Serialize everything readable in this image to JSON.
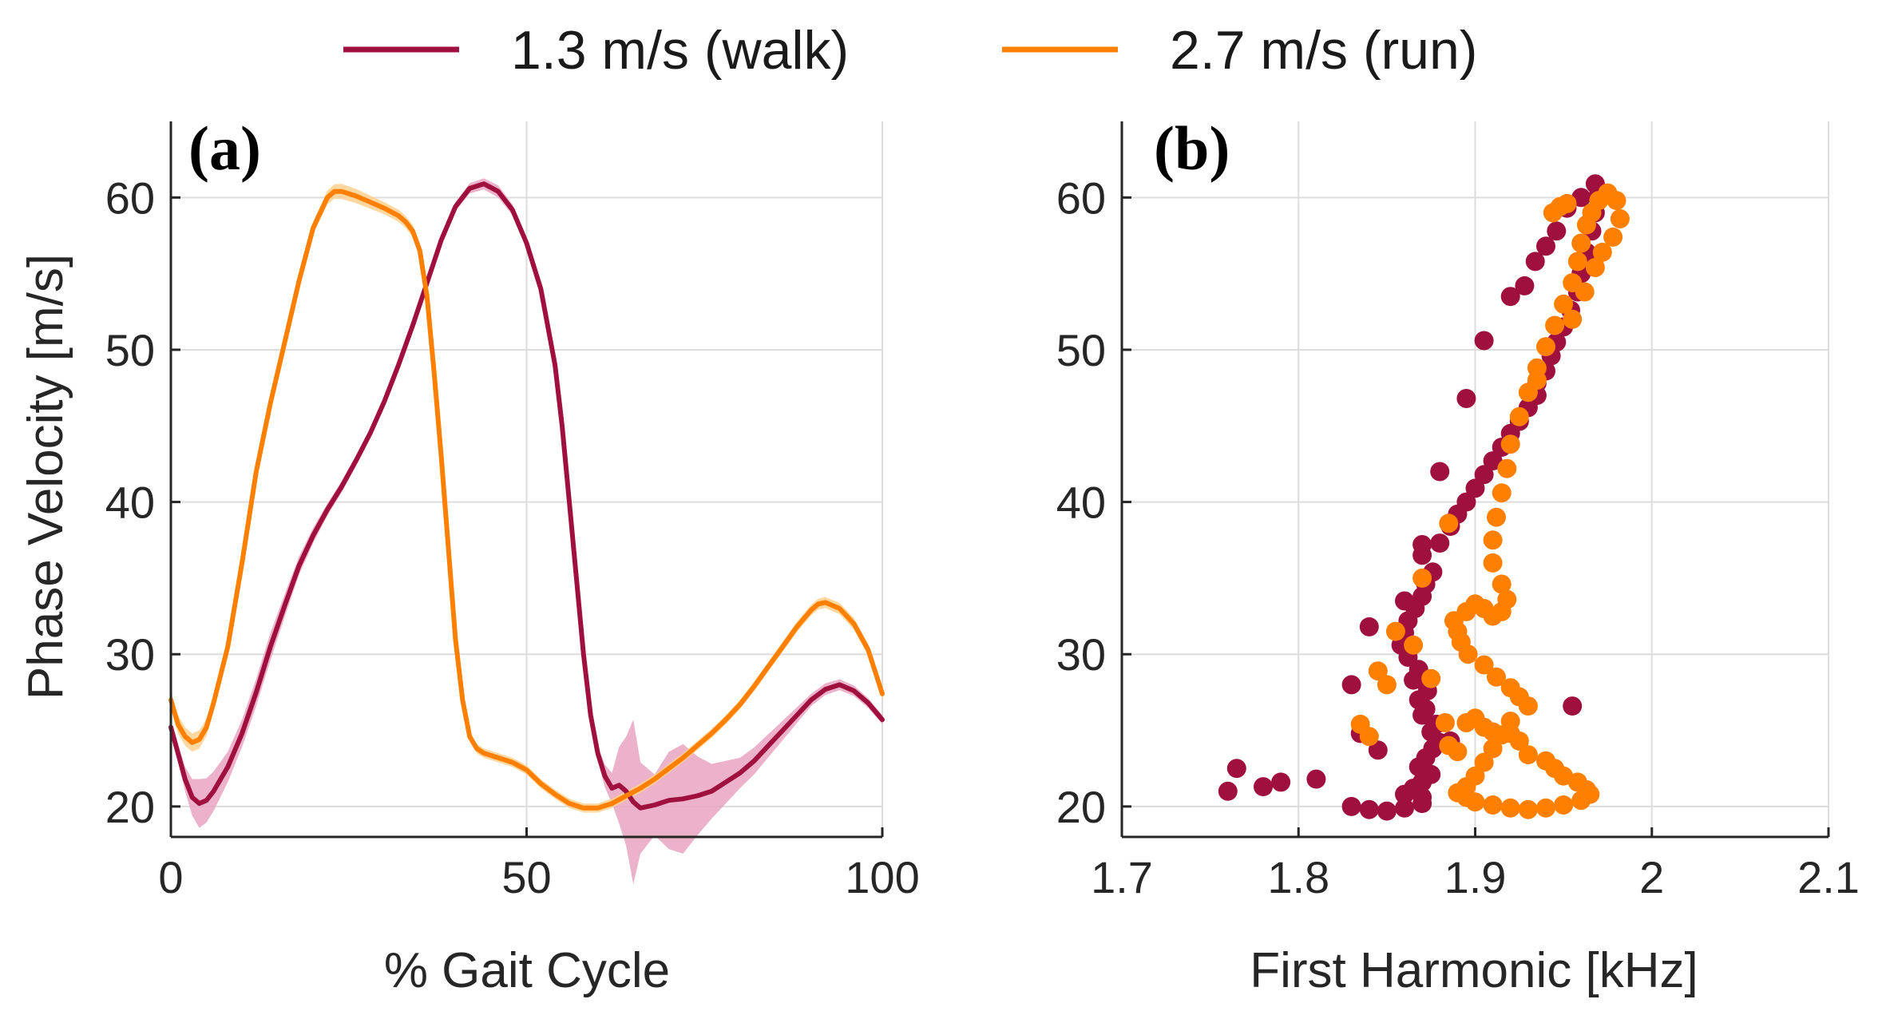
{
  "legend": {
    "walk_label": "1.3 m/s (walk)",
    "run_label": "2.7 m/s (run)"
  },
  "colors": {
    "walk": "#A0103F",
    "run": "#FF8000",
    "walk_band": "#E8A5C0",
    "run_band": "#FFD090",
    "grid": "#DDDDDD",
    "axis": "#262626"
  },
  "chart_data": [
    {
      "panel": "(a)",
      "type": "line",
      "xlabel": "% Gait Cycle",
      "ylabel": "Phase Velocity [m/s]",
      "xlim": [
        0,
        100
      ],
      "ylim": [
        18,
        65
      ],
      "xticks": [
        0,
        50,
        100
      ],
      "yticks": [
        20,
        30,
        40,
        50,
        60
      ],
      "grid": true,
      "series": [
        {
          "name": "1.3 m/s (walk)",
          "x": [
            0,
            1,
            2,
            3,
            4,
            5,
            6,
            8,
            10,
            12,
            14,
            16,
            18,
            20,
            22,
            24,
            26,
            28,
            30,
            32,
            34,
            36,
            38,
            40,
            42,
            44,
            46,
            48,
            50,
            52,
            54,
            55,
            56,
            57,
            58,
            59,
            60,
            61,
            62,
            63,
            64,
            65,
            66,
            68,
            70,
            72,
            74,
            76,
            78,
            80,
            82,
            84,
            86,
            88,
            90,
            92,
            94,
            96,
            98,
            100
          ],
          "y": [
            25.2,
            23.5,
            21.8,
            20.6,
            20.2,
            20.4,
            21.0,
            22.6,
            24.8,
            27.5,
            30.5,
            33.2,
            35.8,
            37.8,
            39.5,
            41.0,
            42.7,
            44.5,
            46.6,
            49.0,
            51.6,
            54.4,
            57.2,
            59.4,
            60.6,
            60.9,
            60.4,
            59.2,
            57.0,
            54.0,
            49.0,
            45.0,
            40.0,
            35.0,
            30.0,
            26.0,
            23.5,
            22.0,
            21.2,
            21.4,
            21.0,
            20.3,
            19.9,
            20.1,
            20.4,
            20.5,
            20.7,
            21.0,
            21.6,
            22.2,
            23.0,
            24.0,
            25.0,
            26.0,
            27.0,
            27.7,
            28.0,
            27.6,
            26.8,
            25.7
          ],
          "band_x": [
            0,
            2,
            4,
            6,
            8,
            10,
            14,
            18,
            22,
            30,
            40,
            46,
            50,
            56,
            60,
            62,
            63,
            64,
            65,
            66,
            67,
            68,
            69,
            70,
            71,
            72,
            74,
            76,
            80,
            90,
            100
          ],
          "band_hw": [
            0.4,
            0.8,
            1.6,
            1.3,
            1.0,
            0.9,
            0.9,
            0.6,
            0.4,
            0.3,
            0.3,
            0.4,
            0.3,
            0.4,
            0.5,
            1.0,
            2.5,
            3.6,
            5.4,
            3.0,
            2.2,
            2.0,
            1.8,
            3.2,
            4.0,
            3.6,
            2.6,
            1.8,
            1.0,
            0.4,
            0.3
          ]
        },
        {
          "name": "2.7 m/s (run)",
          "x": [
            0,
            1,
            2,
            3,
            4,
            5,
            6,
            8,
            10,
            12,
            14,
            16,
            18,
            20,
            22,
            23,
            24,
            26,
            28,
            30,
            32,
            33,
            34,
            35,
            36,
            37,
            38,
            39,
            40,
            41,
            42,
            43,
            44,
            46,
            48,
            50,
            52,
            54,
            56,
            58,
            60,
            62,
            64,
            66,
            68,
            70,
            72,
            74,
            76,
            78,
            80,
            82,
            84,
            86,
            88,
            90,
            91,
            92,
            94,
            96,
            98,
            100
          ],
          "y": [
            27.0,
            25.4,
            24.6,
            24.2,
            24.4,
            25.2,
            26.8,
            30.5,
            36.0,
            42.0,
            46.5,
            50.5,
            54.5,
            58.0,
            60.0,
            60.4,
            60.4,
            60.1,
            59.7,
            59.3,
            58.8,
            58.4,
            57.8,
            56.5,
            53.5,
            48.5,
            43.0,
            37.0,
            31.0,
            27.0,
            24.6,
            23.8,
            23.5,
            23.2,
            22.9,
            22.4,
            21.5,
            20.8,
            20.2,
            19.9,
            19.9,
            20.2,
            20.7,
            21.2,
            21.8,
            22.5,
            23.2,
            24.0,
            24.8,
            25.7,
            26.7,
            27.9,
            29.2,
            30.5,
            31.8,
            32.9,
            33.3,
            33.4,
            33.0,
            32.0,
            30.3,
            27.4
          ],
          "band_x": [
            0,
            4,
            10,
            20,
            24,
            30,
            36,
            44,
            60,
            80,
            100
          ],
          "band_hw": [
            0.6,
            0.6,
            0.4,
            0.4,
            0.5,
            0.4,
            0.4,
            0.3,
            0.3,
            0.3,
            0.4
          ]
        }
      ]
    },
    {
      "panel": "(b)",
      "type": "scatter",
      "xlabel": "First Harmonic [kHz]",
      "ylabel": "",
      "xlim": [
        1.7,
        2.1
      ],
      "ylim": [
        18,
        65
      ],
      "xticks": [
        1.7,
        1.8,
        1.9,
        2,
        2.1
      ],
      "xticklabels": [
        "1.7",
        "1.8",
        "1.9",
        "2",
        "2.1"
      ],
      "yticks": [
        20,
        30,
        40,
        50,
        60
      ],
      "grid": true,
      "series": [
        {
          "name": "1.3 m/s (walk)",
          "points": [
            [
              1.76,
              21.0
            ],
            [
              1.765,
              22.5
            ],
            [
              1.78,
              21.3
            ],
            [
              1.79,
              21.6
            ],
            [
              1.81,
              21.8
            ],
            [
              1.83,
              20.0
            ],
            [
              1.84,
              19.8
            ],
            [
              1.85,
              19.7
            ],
            [
              1.86,
              19.9
            ],
            [
              1.87,
              20.2
            ],
            [
              1.87,
              20.6
            ],
            [
              1.86,
              20.8
            ],
            [
              1.865,
              21.2
            ],
            [
              1.87,
              21.6
            ],
            [
              1.875,
              22.1
            ],
            [
              1.868,
              22.6
            ],
            [
              1.872,
              23.2
            ],
            [
              1.876,
              23.8
            ],
            [
              1.88,
              24.2
            ],
            [
              1.886,
              24.3
            ],
            [
              1.875,
              24.9
            ],
            [
              1.878,
              25.4
            ],
            [
              1.87,
              26.0
            ],
            [
              1.872,
              26.4
            ],
            [
              1.868,
              27.0
            ],
            [
              1.873,
              27.6
            ],
            [
              1.865,
              28.3
            ],
            [
              1.868,
              29.0
            ],
            [
              1.862,
              29.8
            ],
            [
              1.858,
              30.6
            ],
            [
              1.86,
              31.4
            ],
            [
              1.862,
              32.2
            ],
            [
              1.866,
              33.0
            ],
            [
              1.87,
              33.8
            ],
            [
              1.872,
              34.6
            ],
            [
              1.876,
              35.4
            ],
            [
              1.87,
              36.5
            ],
            [
              1.88,
              37.3
            ],
            [
              1.886,
              38.4
            ],
            [
              1.89,
              39.2
            ],
            [
              1.895,
              40.0
            ],
            [
              1.9,
              40.9
            ],
            [
              1.905,
              41.8
            ],
            [
              1.91,
              42.7
            ],
            [
              1.915,
              43.6
            ],
            [
              1.92,
              44.5
            ],
            [
              1.925,
              45.3
            ],
            [
              1.93,
              46.2
            ],
            [
              1.935,
              47.0
            ],
            [
              1.935,
              47.8
            ],
            [
              1.94,
              48.6
            ],
            [
              1.943,
              49.6
            ],
            [
              1.946,
              50.5
            ],
            [
              1.95,
              51.5
            ],
            [
              1.954,
              52.6
            ],
            [
              1.958,
              53.8
            ],
            [
              1.96,
              55.0
            ],
            [
              1.963,
              56.4
            ],
            [
              1.966,
              57.8
            ],
            [
              1.968,
              59.0
            ],
            [
              1.97,
              60.4
            ],
            [
              1.968,
              60.9
            ],
            [
              1.96,
              60.0
            ],
            [
              1.952,
              59.3
            ],
            [
              1.946,
              57.8
            ],
            [
              1.94,
              56.8
            ],
            [
              1.934,
              55.8
            ],
            [
              1.928,
              54.2
            ],
            [
              1.92,
              53.5
            ],
            [
              1.905,
              50.6
            ],
            [
              1.895,
              46.8
            ],
            [
              1.88,
              42.0
            ],
            [
              1.87,
              37.2
            ],
            [
              1.86,
              33.5
            ],
            [
              1.84,
              31.8
            ],
            [
              1.83,
              28.0
            ],
            [
              1.835,
              24.8
            ],
            [
              1.845,
              23.7
            ],
            [
              1.87,
              21.6
            ],
            [
              1.955,
              26.6
            ]
          ]
        },
        {
          "name": "2.7 m/s (run)",
          "points": [
            [
              1.835,
              25.4
            ],
            [
              1.84,
              24.6
            ],
            [
              1.845,
              28.9
            ],
            [
              1.85,
              28.0
            ],
            [
              1.855,
              31.5
            ],
            [
              1.865,
              30.6
            ],
            [
              1.875,
              28.4
            ],
            [
              1.883,
              25.5
            ],
            [
              1.885,
              24.0
            ],
            [
              1.89,
              23.6
            ],
            [
              1.895,
              25.5
            ],
            [
              1.9,
              25.8
            ],
            [
              1.905,
              25.2
            ],
            [
              1.91,
              24.9
            ],
            [
              1.92,
              24.8
            ],
            [
              1.925,
              24.3
            ],
            [
              1.93,
              23.4
            ],
            [
              1.94,
              23.0
            ],
            [
              1.945,
              22.5
            ],
            [
              1.95,
              22.0
            ],
            [
              1.958,
              21.6
            ],
            [
              1.963,
              21.1
            ],
            [
              1.965,
              20.8
            ],
            [
              1.96,
              20.4
            ],
            [
              1.95,
              20.1
            ],
            [
              1.94,
              19.9
            ],
            [
              1.93,
              19.8
            ],
            [
              1.92,
              19.9
            ],
            [
              1.91,
              20.1
            ],
            [
              1.9,
              20.3
            ],
            [
              1.895,
              20.6
            ],
            [
              1.89,
              20.9
            ],
            [
              1.895,
              21.3
            ],
            [
              1.9,
              22.0
            ],
            [
              1.905,
              22.9
            ],
            [
              1.91,
              23.8
            ],
            [
              1.915,
              24.7
            ],
            [
              1.92,
              25.6
            ],
            [
              1.93,
              26.6
            ],
            [
              1.925,
              27.2
            ],
            [
              1.92,
              27.8
            ],
            [
              1.912,
              28.5
            ],
            [
              1.905,
              29.3
            ],
            [
              1.896,
              30.0
            ],
            [
              1.892,
              30.8
            ],
            [
              1.89,
              31.5
            ],
            [
              1.888,
              32.2
            ],
            [
              1.895,
              32.8
            ],
            [
              1.9,
              33.3
            ],
            [
              1.905,
              33.0
            ],
            [
              1.91,
              32.5
            ],
            [
              1.915,
              32.8
            ],
            [
              1.918,
              33.6
            ],
            [
              1.915,
              34.6
            ],
            [
              1.91,
              36.0
            ],
            [
              1.91,
              37.5
            ],
            [
              1.912,
              39.0
            ],
            [
              1.915,
              40.6
            ],
            [
              1.918,
              42.2
            ],
            [
              1.92,
              43.8
            ],
            [
              1.925,
              45.6
            ],
            [
              1.93,
              47.2
            ],
            [
              1.935,
              48.8
            ],
            [
              1.94,
              50.2
            ],
            [
              1.945,
              51.6
            ],
            [
              1.95,
              53.0
            ],
            [
              1.955,
              54.4
            ],
            [
              1.958,
              55.8
            ],
            [
              1.96,
              57.0
            ],
            [
              1.963,
              58.2
            ],
            [
              1.966,
              59.0
            ],
            [
              1.97,
              59.8
            ],
            [
              1.975,
              60.3
            ],
            [
              1.98,
              59.8
            ],
            [
              1.982,
              58.6
            ],
            [
              1.978,
              57.4
            ],
            [
              1.972,
              56.4
            ],
            [
              1.968,
              55.4
            ],
            [
              1.962,
              53.8
            ],
            [
              1.955,
              52.0
            ],
            [
              1.944,
              59.0
            ],
            [
              1.948,
              59.4
            ],
            [
              1.952,
              59.6
            ],
            [
              1.935,
              48.0
            ],
            [
              1.885,
              38.6
            ],
            [
              1.87,
              35.0
            ]
          ]
        }
      ]
    }
  ]
}
